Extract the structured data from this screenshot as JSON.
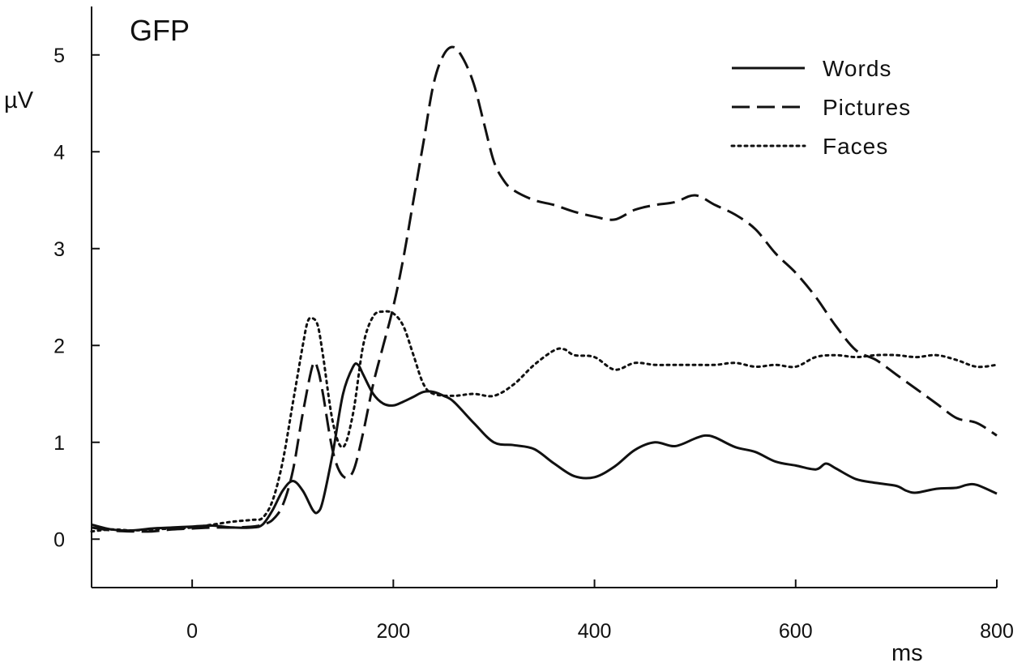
{
  "chart_data": {
    "type": "line",
    "title": "GFP",
    "xlabel": "ms",
    "ylabel": "µV",
    "xlim": [
      -100,
      800
    ],
    "ylim": [
      -0.5,
      5.5
    ],
    "xticks": [
      0,
      200,
      400,
      600,
      800
    ],
    "yticks": [
      0,
      1,
      2,
      3,
      4,
      5
    ],
    "grid": false,
    "legend_position": "top-right",
    "series": [
      {
        "name": "Words",
        "style": "solid",
        "x": [
          -100,
          -80,
          -60,
          -40,
          -20,
          0,
          20,
          40,
          60,
          70,
          80,
          90,
          100,
          110,
          120,
          125,
          130,
          140,
          150,
          160,
          165,
          170,
          180,
          190,
          200,
          210,
          220,
          230,
          240,
          250,
          260,
          280,
          300,
          320,
          340,
          360,
          380,
          400,
          420,
          440,
          460,
          480,
          500,
          510,
          520,
          540,
          560,
          580,
          600,
          620,
          630,
          640,
          660,
          680,
          700,
          710,
          720,
          740,
          760,
          770,
          780,
          800
        ],
        "y": [
          0.15,
          0.1,
          0.09,
          0.11,
          0.12,
          0.13,
          0.14,
          0.12,
          0.12,
          0.15,
          0.3,
          0.5,
          0.6,
          0.5,
          0.3,
          0.28,
          0.4,
          0.9,
          1.5,
          1.78,
          1.8,
          1.7,
          1.5,
          1.4,
          1.38,
          1.42,
          1.47,
          1.52,
          1.52,
          1.48,
          1.42,
          1.2,
          1.0,
          0.97,
          0.93,
          0.78,
          0.65,
          0.64,
          0.75,
          0.92,
          1.0,
          0.96,
          1.04,
          1.07,
          1.05,
          0.95,
          0.9,
          0.8,
          0.76,
          0.72,
          0.78,
          0.73,
          0.62,
          0.58,
          0.55,
          0.5,
          0.48,
          0.52,
          0.53,
          0.56,
          0.56,
          0.47
        ]
      },
      {
        "name": "Pictures",
        "style": "dashed",
        "x": [
          -100,
          -80,
          -60,
          -40,
          -20,
          0,
          20,
          40,
          60,
          70,
          80,
          90,
          100,
          110,
          120,
          125,
          130,
          140,
          150,
          160,
          170,
          180,
          190,
          200,
          210,
          220,
          230,
          240,
          250,
          260,
          270,
          280,
          290,
          300,
          310,
          320,
          340,
          360,
          380,
          400,
          420,
          440,
          460,
          480,
          500,
          520,
          540,
          560,
          580,
          600,
          620,
          640,
          660,
          680,
          700,
          720,
          740,
          760,
          780,
          800
        ],
        "y": [
          0.12,
          0.09,
          0.08,
          0.08,
          0.1,
          0.11,
          0.12,
          0.12,
          0.13,
          0.15,
          0.2,
          0.35,
          0.7,
          1.3,
          1.8,
          1.75,
          1.5,
          0.9,
          0.65,
          0.7,
          1.1,
          1.6,
          2.0,
          2.4,
          2.9,
          3.5,
          4.1,
          4.7,
          5.0,
          5.08,
          4.95,
          4.7,
          4.3,
          3.9,
          3.7,
          3.6,
          3.5,
          3.45,
          3.38,
          3.33,
          3.3,
          3.4,
          3.45,
          3.48,
          3.55,
          3.45,
          3.35,
          3.2,
          2.95,
          2.75,
          2.5,
          2.2,
          1.95,
          1.85,
          1.7,
          1.55,
          1.4,
          1.25,
          1.2,
          1.07
        ]
      },
      {
        "name": "Faces",
        "style": "dotted",
        "x": [
          -100,
          -80,
          -60,
          -40,
          -20,
          0,
          20,
          40,
          60,
          70,
          80,
          90,
          100,
          110,
          115,
          120,
          125,
          130,
          140,
          150,
          160,
          170,
          180,
          190,
          200,
          210,
          220,
          230,
          240,
          260,
          280,
          300,
          320,
          340,
          360,
          370,
          380,
          400,
          420,
          440,
          460,
          480,
          500,
          520,
          540,
          560,
          580,
          600,
          620,
          640,
          660,
          680,
          700,
          720,
          740,
          760,
          780,
          800
        ],
        "y": [
          0.08,
          0.1,
          0.09,
          0.1,
          0.11,
          0.12,
          0.15,
          0.18,
          0.2,
          0.22,
          0.4,
          0.8,
          1.4,
          2.0,
          2.25,
          2.28,
          2.2,
          1.9,
          1.2,
          0.95,
          1.3,
          2.0,
          2.3,
          2.35,
          2.33,
          2.2,
          1.9,
          1.6,
          1.5,
          1.48,
          1.5,
          1.48,
          1.6,
          1.8,
          1.95,
          1.96,
          1.9,
          1.88,
          1.75,
          1.82,
          1.8,
          1.8,
          1.8,
          1.8,
          1.82,
          1.78,
          1.8,
          1.78,
          1.88,
          1.9,
          1.88,
          1.9,
          1.9,
          1.88,
          1.9,
          1.85,
          1.78,
          1.8
        ]
      }
    ]
  }
}
